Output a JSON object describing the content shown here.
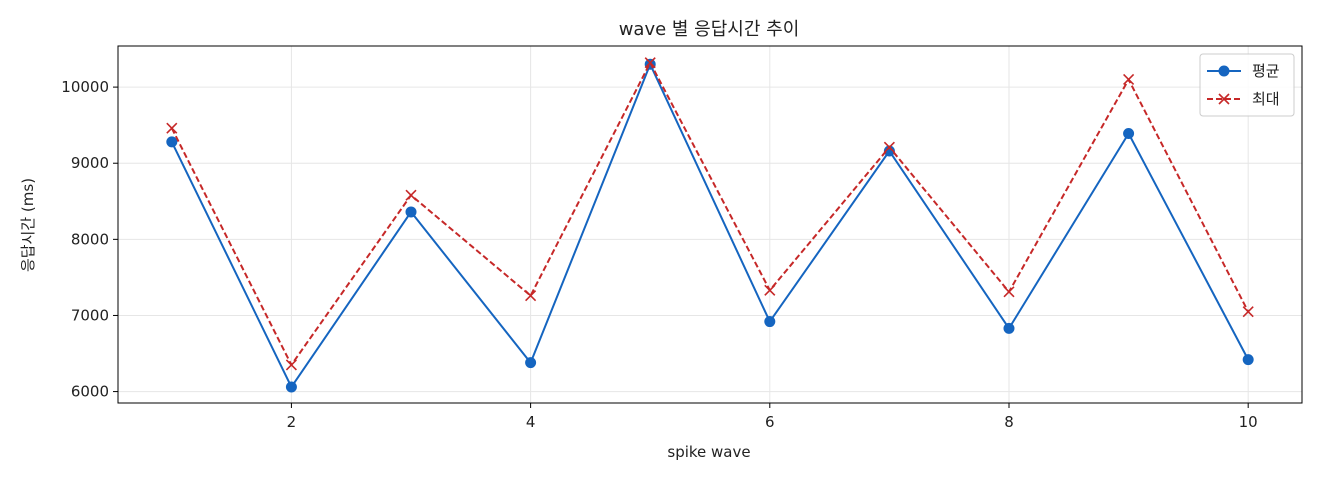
{
  "chart_data": {
    "type": "line",
    "title": "wave 별 응답시간 추이",
    "xlabel": "spike wave",
    "ylabel": "응답시간 (ms)",
    "x": [
      1,
      2,
      3,
      4,
      5,
      6,
      7,
      8,
      9,
      10
    ],
    "xlim": [
      0.55,
      10.45
    ],
    "ylim": [
      5850,
      10540
    ],
    "xticks": [
      2,
      4,
      6,
      8,
      10
    ],
    "yticks": [
      6000,
      7000,
      8000,
      9000,
      10000
    ],
    "grid": true,
    "legend_position": "top-right",
    "series": [
      {
        "name": "평균",
        "color": "#1565c0",
        "marker": "circle",
        "line_style": "solid",
        "values": [
          9280,
          6060,
          8360,
          6380,
          10300,
          6920,
          9160,
          6830,
          9390,
          6420
        ]
      },
      {
        "name": "최대",
        "color": "#c62828",
        "marker": "x",
        "line_style": "dashed",
        "values": [
          9460,
          6350,
          8580,
          7260,
          10320,
          7330,
          9210,
          7310,
          10100,
          7050
        ]
      }
    ]
  }
}
